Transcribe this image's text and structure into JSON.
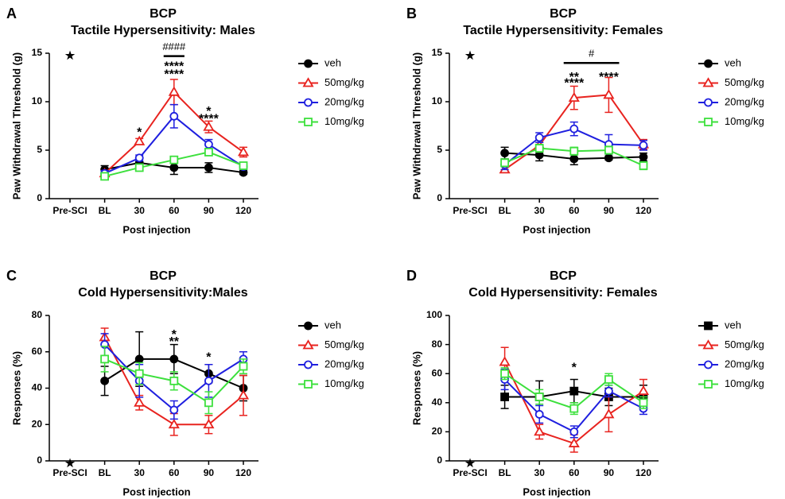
{
  "chart_data": [
    {
      "type": "line",
      "label": "A",
      "title": "BCP",
      "subtitle": "Tactile Hypersensitivity: Males",
      "x_label": "Post injection",
      "y_label": "Paw Withdrawal Threshold (g)",
      "categories": [
        "Pre-SCI",
        "BL",
        "30",
        "60",
        "90",
        "120"
      ],
      "ylim": [
        0,
        15
      ],
      "yticks": [
        0,
        5,
        10,
        15
      ],
      "series": [
        {
          "name": "veh",
          "color": "#000000",
          "marker": "circle",
          "filled": true,
          "values": [
            null,
            3.0,
            3.7,
            3.2,
            3.2,
            2.7
          ],
          "errors": [
            null,
            0.4,
            0.6,
            0.7,
            0.5,
            0.2
          ]
        },
        {
          "name": "50mg/kg",
          "color": "#e8231f",
          "marker": "triangle",
          "filled": false,
          "values": [
            null,
            2.6,
            5.9,
            11.0,
            7.4,
            4.8
          ],
          "errors": [
            null,
            0.3,
            0.3,
            1.3,
            0.6,
            0.5
          ]
        },
        {
          "name": "20mg/kg",
          "color": "#1f1fdf",
          "marker": "circle",
          "filled": false,
          "values": [
            null,
            2.6,
            4.2,
            8.5,
            5.6,
            3.3
          ],
          "errors": [
            null,
            0.3,
            0.3,
            1.2,
            0.5,
            0.3
          ]
        },
        {
          "name": "10mg/kg",
          "color": "#3de03d",
          "marker": "square",
          "filled": false,
          "values": [
            null,
            2.3,
            3.2,
            4.0,
            4.8,
            3.4
          ],
          "errors": [
            null,
            0.3,
            0.3,
            0.3,
            0.3,
            0.3
          ]
        }
      ],
      "annotations": [
        {
          "text": "★",
          "x": "Pre-SCI",
          "y": 15,
          "color": "#000000"
        },
        {
          "text": "*",
          "x": "30",
          "y": 7.1,
          "color": "#e8231f"
        },
        {
          "text": "****",
          "x": "60",
          "y": 13.9,
          "color": "#1f1fdf"
        },
        {
          "text": "****",
          "x": "60",
          "y": 13.1,
          "color": "#e8231f"
        },
        {
          "text": "*",
          "x": "90",
          "y": 9.3,
          "color": "#1f1fdf"
        },
        {
          "text": "****",
          "x": "90",
          "y": 8.5,
          "color": "#e8231f"
        }
      ],
      "brackets": [
        {
          "from": "60",
          "to": "60",
          "y": 14.7,
          "label": "####",
          "color": "#000000",
          "label_color": "#000000"
        }
      ]
    },
    {
      "type": "line",
      "label": "B",
      "title": "BCP",
      "subtitle": "Tactile Hypersensitivity: Females",
      "x_label": "Post injection",
      "y_label": "Paw Withdrawal Threshold (g)",
      "categories": [
        "Pre-SCI",
        "BL",
        "30",
        "60",
        "90",
        "120"
      ],
      "ylim": [
        0,
        15
      ],
      "yticks": [
        0,
        5,
        10,
        15
      ],
      "series": [
        {
          "name": "veh",
          "color": "#000000",
          "marker": "circle",
          "filled": true,
          "values": [
            null,
            4.7,
            4.5,
            4.1,
            4.2,
            4.3
          ],
          "errors": [
            null,
            0.6,
            0.6,
            0.6,
            0.2,
            0.4
          ]
        },
        {
          "name": "50mg/kg",
          "color": "#e8231f",
          "marker": "triangle",
          "filled": false,
          "values": [
            null,
            3.0,
            5.5,
            10.4,
            10.7,
            5.6
          ],
          "errors": [
            null,
            0.3,
            0.3,
            1.2,
            1.8,
            0.5
          ]
        },
        {
          "name": "20mg/kg",
          "color": "#1f1fdf",
          "marker": "circle",
          "filled": false,
          "values": [
            null,
            3.5,
            6.3,
            7.2,
            5.6,
            5.5
          ],
          "errors": [
            null,
            0.5,
            0.5,
            0.7,
            1.0,
            0.5
          ]
        },
        {
          "name": "10mg/kg",
          "color": "#3de03d",
          "marker": "square",
          "filled": false,
          "values": [
            null,
            3.7,
            5.2,
            4.9,
            5.0,
            3.4
          ],
          "errors": [
            null,
            0.4,
            0.4,
            0.4,
            0.4,
            0.4
          ]
        }
      ],
      "annotations": [
        {
          "text": "★",
          "x": "Pre-SCI",
          "y": 15,
          "color": "#000000"
        },
        {
          "text": "**",
          "x": "60",
          "y": 12.8,
          "color": "#1f1fdf"
        },
        {
          "text": "****",
          "x": "60",
          "y": 12.2,
          "color": "#e8231f"
        },
        {
          "text": "****",
          "x": "90",
          "y": 12.8,
          "color": "#e8231f"
        }
      ],
      "brackets": [
        {
          "from": "60",
          "to": "90",
          "y": 14.0,
          "label": "#",
          "color": "#000000",
          "label_color": "#e8231f"
        }
      ]
    },
    {
      "type": "line",
      "label": "C",
      "title": "BCP",
      "subtitle": "Cold Hypersensitivity:Males",
      "x_label": "Post injection",
      "y_label": "Responses (%)",
      "categories": [
        "Pre-SCI",
        "BL",
        "30",
        "60",
        "90",
        "120"
      ],
      "ylim": [
        0,
        80
      ],
      "yticks": [
        0,
        20,
        40,
        60,
        80
      ],
      "series": [
        {
          "name": "veh",
          "color": "#000000",
          "marker": "circle",
          "filled": true,
          "values": [
            null,
            44,
            56,
            56,
            48,
            40
          ],
          "errors": [
            null,
            8,
            15,
            8,
            5,
            7
          ]
        },
        {
          "name": "50mg/kg",
          "color": "#e8231f",
          "marker": "triangle",
          "filled": false,
          "values": [
            null,
            68,
            32,
            20,
            20,
            36
          ],
          "errors": [
            null,
            5,
            4,
            6,
            5,
            11
          ]
        },
        {
          "name": "20mg/kg",
          "color": "#1f1fdf",
          "marker": "circle",
          "filled": false,
          "values": [
            null,
            64,
            44,
            28,
            44,
            56
          ],
          "errors": [
            null,
            6,
            9,
            5,
            9,
            4
          ]
        },
        {
          "name": "10mg/kg",
          "color": "#3de03d",
          "marker": "square",
          "filled": false,
          "values": [
            null,
            56,
            48,
            44,
            32,
            52
          ],
          "errors": [
            null,
            7,
            6,
            5,
            6,
            4
          ]
        }
      ],
      "annotations": [
        {
          "text": "★",
          "x": "Pre-SCI",
          "y": 0,
          "color": "#000000"
        },
        {
          "text": "*",
          "x": "60",
          "y": 71,
          "color": "#1f1fdf"
        },
        {
          "text": "**",
          "x": "60",
          "y": 67,
          "color": "#e8231f"
        },
        {
          "text": "*",
          "x": "90",
          "y": 58.5,
          "color": "#e8231f"
        }
      ],
      "brackets": []
    },
    {
      "type": "line",
      "label": "D",
      "title": "BCP",
      "subtitle": "Cold Hypersensitivity: Females",
      "x_label": "Post injection",
      "y_label": "Responses (%)",
      "categories": [
        "Pre-SCI",
        "BL",
        "30",
        "60",
        "90",
        "120"
      ],
      "ylim": [
        0,
        100
      ],
      "yticks": [
        0,
        20,
        40,
        60,
        80,
        100
      ],
      "series": [
        {
          "name": "veh",
          "color": "#000000",
          "marker": "square",
          "filled": true,
          "values": [
            null,
            44,
            44,
            48,
            44,
            44
          ],
          "errors": [
            null,
            8,
            11,
            8,
            6,
            8
          ]
        },
        {
          "name": "50mg/kg",
          "color": "#e8231f",
          "marker": "triangle",
          "filled": false,
          "values": [
            null,
            68,
            20,
            12,
            32,
            48
          ],
          "errors": [
            null,
            10,
            5,
            6,
            12,
            8
          ]
        },
        {
          "name": "20mg/kg",
          "color": "#1f1fdf",
          "marker": "circle",
          "filled": false,
          "values": [
            null,
            56,
            32,
            20,
            48,
            36
          ],
          "errors": [
            null,
            7,
            6,
            4,
            4,
            4
          ]
        },
        {
          "name": "10mg/kg",
          "color": "#3de03d",
          "marker": "square",
          "filled": false,
          "values": [
            null,
            60,
            44,
            36,
            56,
            40
          ],
          "errors": [
            null,
            4,
            5,
            4,
            4,
            4
          ]
        }
      ],
      "annotations": [
        {
          "text": "★",
          "x": "Pre-SCI",
          "y": 0,
          "color": "#000000"
        },
        {
          "text": "*",
          "x": "60",
          "y": 66,
          "color": "#e8231f"
        }
      ],
      "brackets": []
    }
  ]
}
